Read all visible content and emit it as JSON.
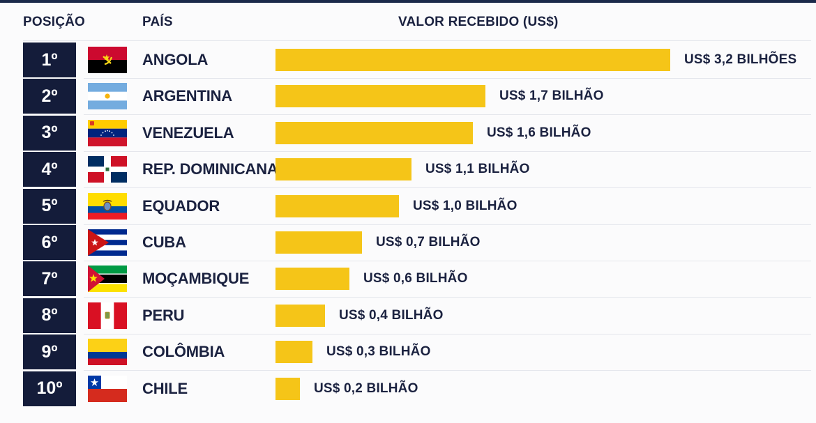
{
  "headers": {
    "position": "POSIÇÃO",
    "country": "PAÍS",
    "value": "VALOR RECEBIDO (US$)"
  },
  "chart_data": {
    "type": "bar",
    "orientation": "horizontal",
    "title": "",
    "xlabel": "VALOR RECEBIDO (US$)",
    "ylabel": "",
    "unit": "US$ bilhões",
    "bar_color": "#f5c518",
    "rank_color": "#141c3a",
    "rows": [
      {
        "rank": "1º",
        "country": "ANGOLA",
        "flag": "angola-flag-icon",
        "value": 3.2,
        "label": "US$ 3,2 BILHÕES"
      },
      {
        "rank": "2º",
        "country": "ARGENTINA",
        "flag": "argentina-flag-icon",
        "value": 1.7,
        "label": "US$ 1,7 BILHÃO"
      },
      {
        "rank": "3º",
        "country": "VENEZUELA",
        "flag": "venezuela-flag-icon",
        "value": 1.6,
        "label": "US$ 1,6 BILHÃO"
      },
      {
        "rank": "4º",
        "country": "REP. DOMINICANA",
        "flag": "dominican-republic-flag-icon",
        "value": 1.1,
        "label": "US$ 1,1 BILHÃO"
      },
      {
        "rank": "5º",
        "country": "EQUADOR",
        "flag": "ecuador-flag-icon",
        "value": 1.0,
        "label": "US$ 1,0 BILHÃO"
      },
      {
        "rank": "6º",
        "country": "CUBA",
        "flag": "cuba-flag-icon",
        "value": 0.7,
        "label": "US$ 0,7 BILHÃO"
      },
      {
        "rank": "7º",
        "country": "MOÇAMBIQUE",
        "flag": "mozambique-flag-icon",
        "value": 0.6,
        "label": "US$ 0,6 BILHÃO"
      },
      {
        "rank": "8º",
        "country": "PERU",
        "flag": "peru-flag-icon",
        "value": 0.4,
        "label": "US$ 0,4 BILHÃO"
      },
      {
        "rank": "9º",
        "country": "COLÔMBIA",
        "flag": "colombia-flag-icon",
        "value": 0.3,
        "label": "US$ 0,3 BILHÃO"
      },
      {
        "rank": "10º",
        "country": "CHILE",
        "flag": "chile-flag-icon",
        "value": 0.2,
        "label": "US$ 0,2 BILHÃO"
      }
    ]
  }
}
